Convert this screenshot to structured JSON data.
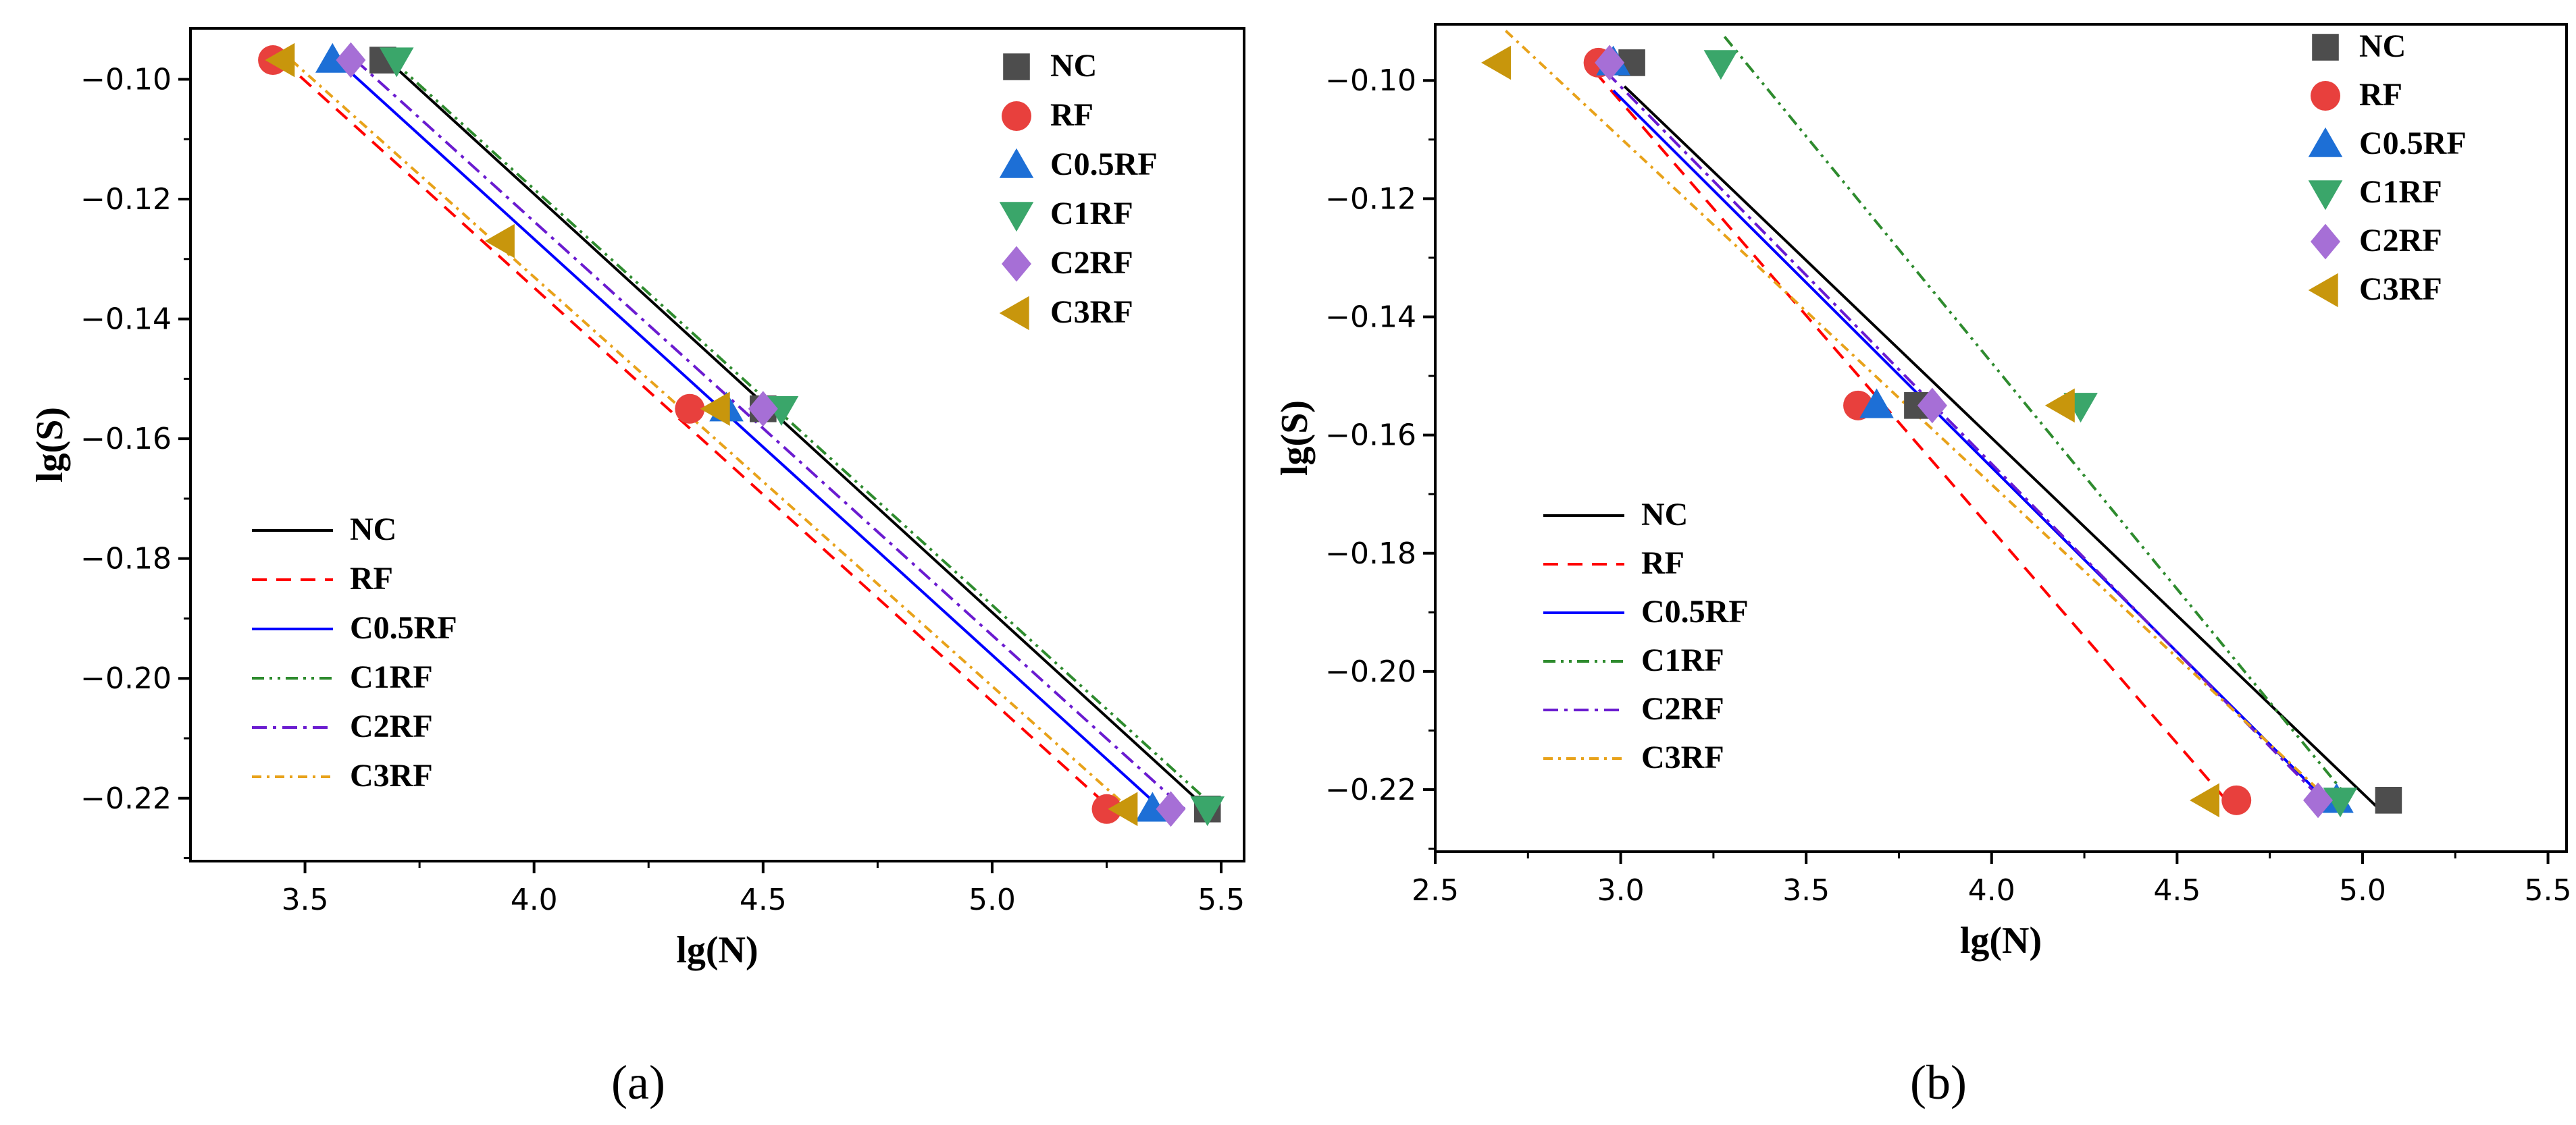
{
  "chart_data": [
    {
      "type": "scatter",
      "panel_label": "(a)",
      "xlabel": "lg(N)",
      "ylabel": "lg(S)",
      "xlim": [
        3.25,
        5.55
      ],
      "ylim": [
        -0.2305,
        -0.0915
      ],
      "xticks": [
        "3.5",
        "4.0",
        "4.5",
        "5.0",
        "5.5"
      ],
      "yticks": [
        "−0.10",
        "−0.12",
        "−0.14",
        "−0.16",
        "−0.18",
        "−0.20",
        "−0.22"
      ],
      "xtick_values": [
        3.5,
        4.0,
        4.5,
        5.0,
        5.5
      ],
      "ytick_values": [
        -0.1,
        -0.12,
        -0.14,
        -0.16,
        -0.18,
        -0.2,
        -0.22
      ],
      "series": [
        {
          "name": "NC",
          "marker": "square",
          "color": "#4d4d4d",
          "points": [
            [
              3.67,
              -0.0968
            ],
            [
              4.5,
              -0.155
            ],
            [
              5.47,
              -0.2218
            ]
          ],
          "fit_name": "NC",
          "fit_color": "#000000",
          "fit_dash": "",
          "fit": [
            [
              3.68,
              -0.0968
            ],
            [
              5.47,
              -0.2218
            ]
          ]
        },
        {
          "name": "RF",
          "marker": "circle",
          "color": "#e8403d",
          "points": [
            [
              3.43,
              -0.0968
            ],
            [
              4.34,
              -0.155
            ],
            [
              5.25,
              -0.2218
            ]
          ],
          "fit_name": "RF",
          "fit_color": "#ff0000",
          "fit_dash": "22,14",
          "fit": [
            [
              3.45,
              -0.0968
            ],
            [
              5.26,
              -0.2218
            ]
          ]
        },
        {
          "name": "C0.5RF",
          "marker": "triangle-up",
          "color": "#1d6fd6",
          "points": [
            [
              3.56,
              -0.0968
            ],
            [
              4.42,
              -0.155
            ],
            [
              5.35,
              -0.2218
            ]
          ],
          "fit_name": "C0.5RF",
          "fit_color": "#0000ff",
          "fit_dash": "",
          "fit": [
            [
              3.57,
              -0.0968
            ],
            [
              5.37,
              -0.2218
            ]
          ]
        },
        {
          "name": "C1RF",
          "marker": "triangle-down",
          "color": "#3aa66a",
          "points": [
            [
              3.7,
              -0.0968
            ],
            [
              4.54,
              -0.155
            ],
            [
              5.47,
              -0.2218
            ]
          ],
          "fit_name": "C1RF",
          "fit_color": "#2e8b2e",
          "fit_dash": "18,8,4,8,4,8",
          "fit": [
            [
              3.69,
              -0.0968
            ],
            [
              5.49,
              -0.2218
            ]
          ]
        },
        {
          "name": "C2RF",
          "marker": "diamond",
          "color": "#a66fd6",
          "points": [
            [
              3.6,
              -0.0968
            ],
            [
              4.5,
              -0.155
            ],
            [
              5.39,
              -0.2218
            ]
          ],
          "fit_name": "C2RF",
          "fit_color": "#6a1bd0",
          "fit_dash": "22,9,5,9",
          "fit": [
            [
              3.61,
              -0.0968
            ],
            [
              5.42,
              -0.2218
            ]
          ]
        },
        {
          "name": "C3RF",
          "marker": "triangle-left",
          "color": "#c8960c",
          "points": [
            [
              3.45,
              -0.0968
            ],
            [
              3.93,
              -0.127
            ],
            [
              4.4,
              -0.155
            ],
            [
              5.29,
              -0.2218
            ]
          ],
          "fit_name": "C3RF",
          "fit_color": "#e8a21a",
          "fit_dash": "14,8,4,8",
          "fit": [
            [
              3.47,
              -0.0968
            ],
            [
              5.3,
              -0.2218
            ]
          ]
        }
      ]
    },
    {
      "type": "scatter",
      "panel_label": "(b)",
      "xlabel": "lg(N)",
      "ylabel": "lg(S)",
      "xlim": [
        2.5,
        5.55
      ],
      "ylim": [
        -0.2305,
        -0.0905
      ],
      "xticks": [
        "2.5",
        "3.0",
        "3.5",
        "4.0",
        "4.5",
        "5.0",
        "5.5"
      ],
      "yticks": [
        "−0.10",
        "−0.12",
        "−0.14",
        "−0.16",
        "−0.18",
        "−0.20",
        "−0.22"
      ],
      "xtick_values": [
        2.5,
        3.0,
        3.5,
        4.0,
        4.5,
        5.0,
        5.5
      ],
      "ytick_values": [
        -0.1,
        -0.12,
        -0.14,
        -0.16,
        -0.18,
        -0.2,
        -0.22
      ],
      "series": [
        {
          "name": "NC",
          "marker": "square",
          "color": "#4d4d4d",
          "points": [
            [
              3.03,
              -0.097
            ],
            [
              3.8,
              -0.155
            ],
            [
              5.07,
              -0.2218
            ]
          ],
          "fit_name": "NC",
          "fit_color": "#000000",
          "fit_dash": "",
          "fit": [
            [
              3.01,
              -0.101
            ],
            [
              5.05,
              -0.2236
            ]
          ]
        },
        {
          "name": "RF",
          "marker": "circle",
          "color": "#e8403d",
          "points": [
            [
              2.94,
              -0.097
            ],
            [
              3.64,
              -0.155
            ],
            [
              4.66,
              -0.2218
            ]
          ],
          "fit_name": "RF",
          "fit_color": "#ff0000",
          "fit_dash": "22,14",
          "fit": [
            [
              2.93,
              -0.0985
            ],
            [
              4.63,
              -0.2216
            ]
          ]
        },
        {
          "name": "C0.5RF",
          "marker": "triangle-up",
          "color": "#1d6fd6",
          "points": [
            [
              2.98,
              -0.097
            ],
            [
              3.69,
              -0.155
            ],
            [
              4.93,
              -0.2218
            ]
          ],
          "fit_name": "C0.5RF",
          "fit_color": "#0000ff",
          "fit_dash": "",
          "fit": [
            [
              2.98,
              -0.1017
            ],
            [
              4.93,
              -0.2236
            ]
          ]
        },
        {
          "name": "C1RF",
          "marker": "triangle-down",
          "color": "#3aa66a",
          "points": [
            [
              3.27,
              -0.097
            ],
            [
              4.24,
              -0.155
            ],
            [
              4.94,
              -0.2218
            ]
          ],
          "fit_name": "C1RF",
          "fit_color": "#2e8b2e",
          "fit_dash": "18,8,4,8,4,8",
          "fit": [
            [
              3.28,
              -0.0926
            ],
            [
              4.96,
              -0.2213
            ]
          ]
        },
        {
          "name": "C2RF",
          "marker": "diamond",
          "color": "#a66fd6",
          "points": [
            [
              2.97,
              -0.097
            ],
            [
              3.84,
              -0.155
            ],
            [
              4.88,
              -0.2218
            ]
          ],
          "fit_name": "C2RF",
          "fit_color": "#6a1bd0",
          "fit_dash": "22,9,5,9",
          "fit": [
            [
              2.96,
              -0.0985
            ],
            [
              4.9,
              -0.2223
            ]
          ]
        },
        {
          "name": "C3RF",
          "marker": "triangle-left",
          "color": "#c8960c",
          "points": [
            [
              2.67,
              -0.097
            ],
            [
              4.19,
              -0.155
            ],
            [
              4.58,
              -0.2218
            ]
          ],
          "fit_name": "C3RF",
          "fit_color": "#e8a21a",
          "fit_dash": "14,8,4,8",
          "fit": [
            [
              2.69,
              -0.0916
            ],
            [
              4.91,
              -0.2217
            ]
          ]
        }
      ]
    }
  ]
}
